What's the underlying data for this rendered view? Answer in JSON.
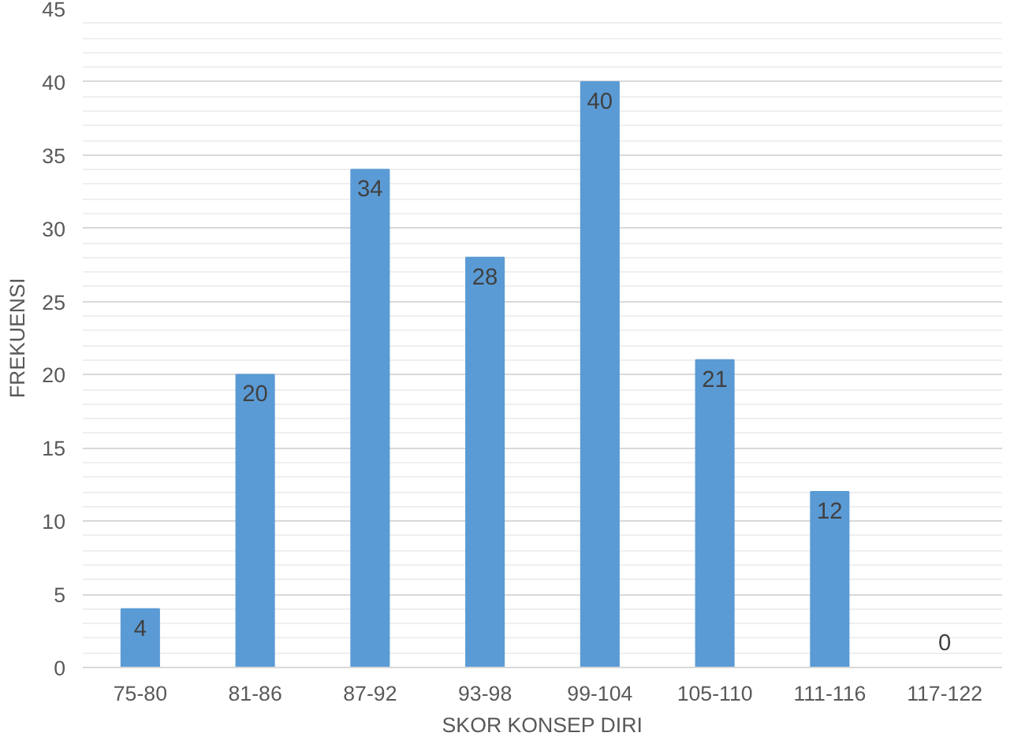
{
  "chart_data": {
    "type": "bar",
    "xlabel": "SKOR KONSEP DIRI",
    "ylabel": "FREKUENSI",
    "categories": [
      "75-80",
      "81-86",
      "87-92",
      "93-98",
      "99-104",
      "105-110",
      "111-116",
      "117-122"
    ],
    "values": [
      4,
      20,
      34,
      28,
      40,
      21,
      12,
      0
    ],
    "color": "#5b9bd5",
    "ylim": [
      0,
      45
    ],
    "yticks": [
      0,
      5,
      10,
      15,
      20,
      25,
      30,
      35,
      40,
      45
    ],
    "grid": "y",
    "data_labels": true
  }
}
